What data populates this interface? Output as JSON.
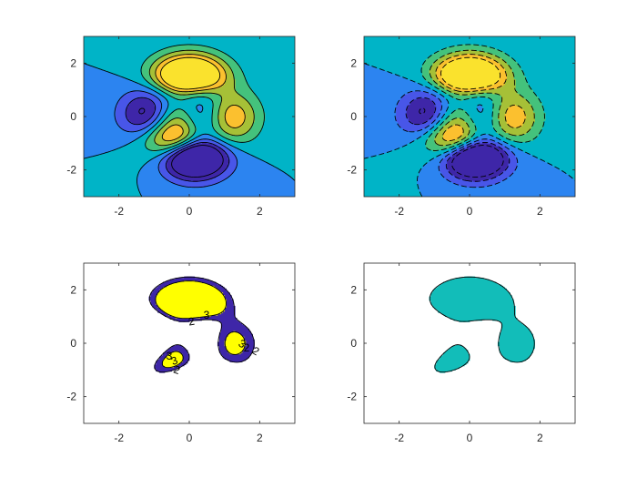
{
  "colors": {
    "background": "#00B3C8",
    "level_minus3": "#3E26A8",
    "level_minus2": "#4856E8",
    "level_minus1": "#2C84F0",
    "level_0": "#00B4C7",
    "level_1": "#44C27C",
    "level_2": "#A6C037",
    "level_3": "#FBC02F",
    "level_4": "#FAE22D",
    "panel3_band": "#3E26A8",
    "panel3_peak": "#FFFF00",
    "panel4_fill": "#12BDB9",
    "contour_line": "#000000"
  },
  "chart_data": [
    {
      "type": "contourf",
      "function": "peaks",
      "xlim": [
        -3,
        3
      ],
      "ylim": [
        -3,
        3
      ],
      "xticks": [
        "-2",
        "0",
        "2"
      ],
      "yticks": [
        "2",
        "0",
        "-2"
      ],
      "levels": [
        -3,
        -2,
        -1,
        0,
        1,
        2,
        3,
        4
      ],
      "line_style": "solid",
      "title": "",
      "xlabel": "",
      "ylabel": ""
    },
    {
      "type": "contourf",
      "function": "peaks",
      "xlim": [
        -3,
        3
      ],
      "ylim": [
        -3,
        3
      ],
      "xticks": [
        "-2",
        "0",
        "2"
      ],
      "yticks": [
        "2",
        "0",
        "-2"
      ],
      "levels": [
        -3,
        -2,
        -1,
        0,
        1,
        2,
        3,
        4
      ],
      "line_style": "dashed",
      "title": "",
      "xlabel": "",
      "ylabel": ""
    },
    {
      "type": "contourf",
      "function": "peaks",
      "xlim": [
        -3,
        3
      ],
      "ylim": [
        -3,
        3
      ],
      "xticks": [
        "-2",
        "0",
        "2"
      ],
      "yticks": [
        "2",
        "0",
        "-2"
      ],
      "levels": [
        2,
        3
      ],
      "contour_labels": [
        "2",
        "3",
        "2",
        "3",
        "3",
        "2",
        "3",
        "2"
      ],
      "title": "",
      "xlabel": "",
      "ylabel": ""
    },
    {
      "type": "contourf",
      "function": "peaks",
      "xlim": [
        -3,
        3
      ],
      "ylim": [
        -3,
        3
      ],
      "xticks": [
        "-2",
        "0",
        "2"
      ],
      "yticks": [
        "2",
        "0",
        "-2"
      ],
      "levels": [
        2
      ],
      "title": "",
      "xlabel": "",
      "ylabel": ""
    }
  ]
}
